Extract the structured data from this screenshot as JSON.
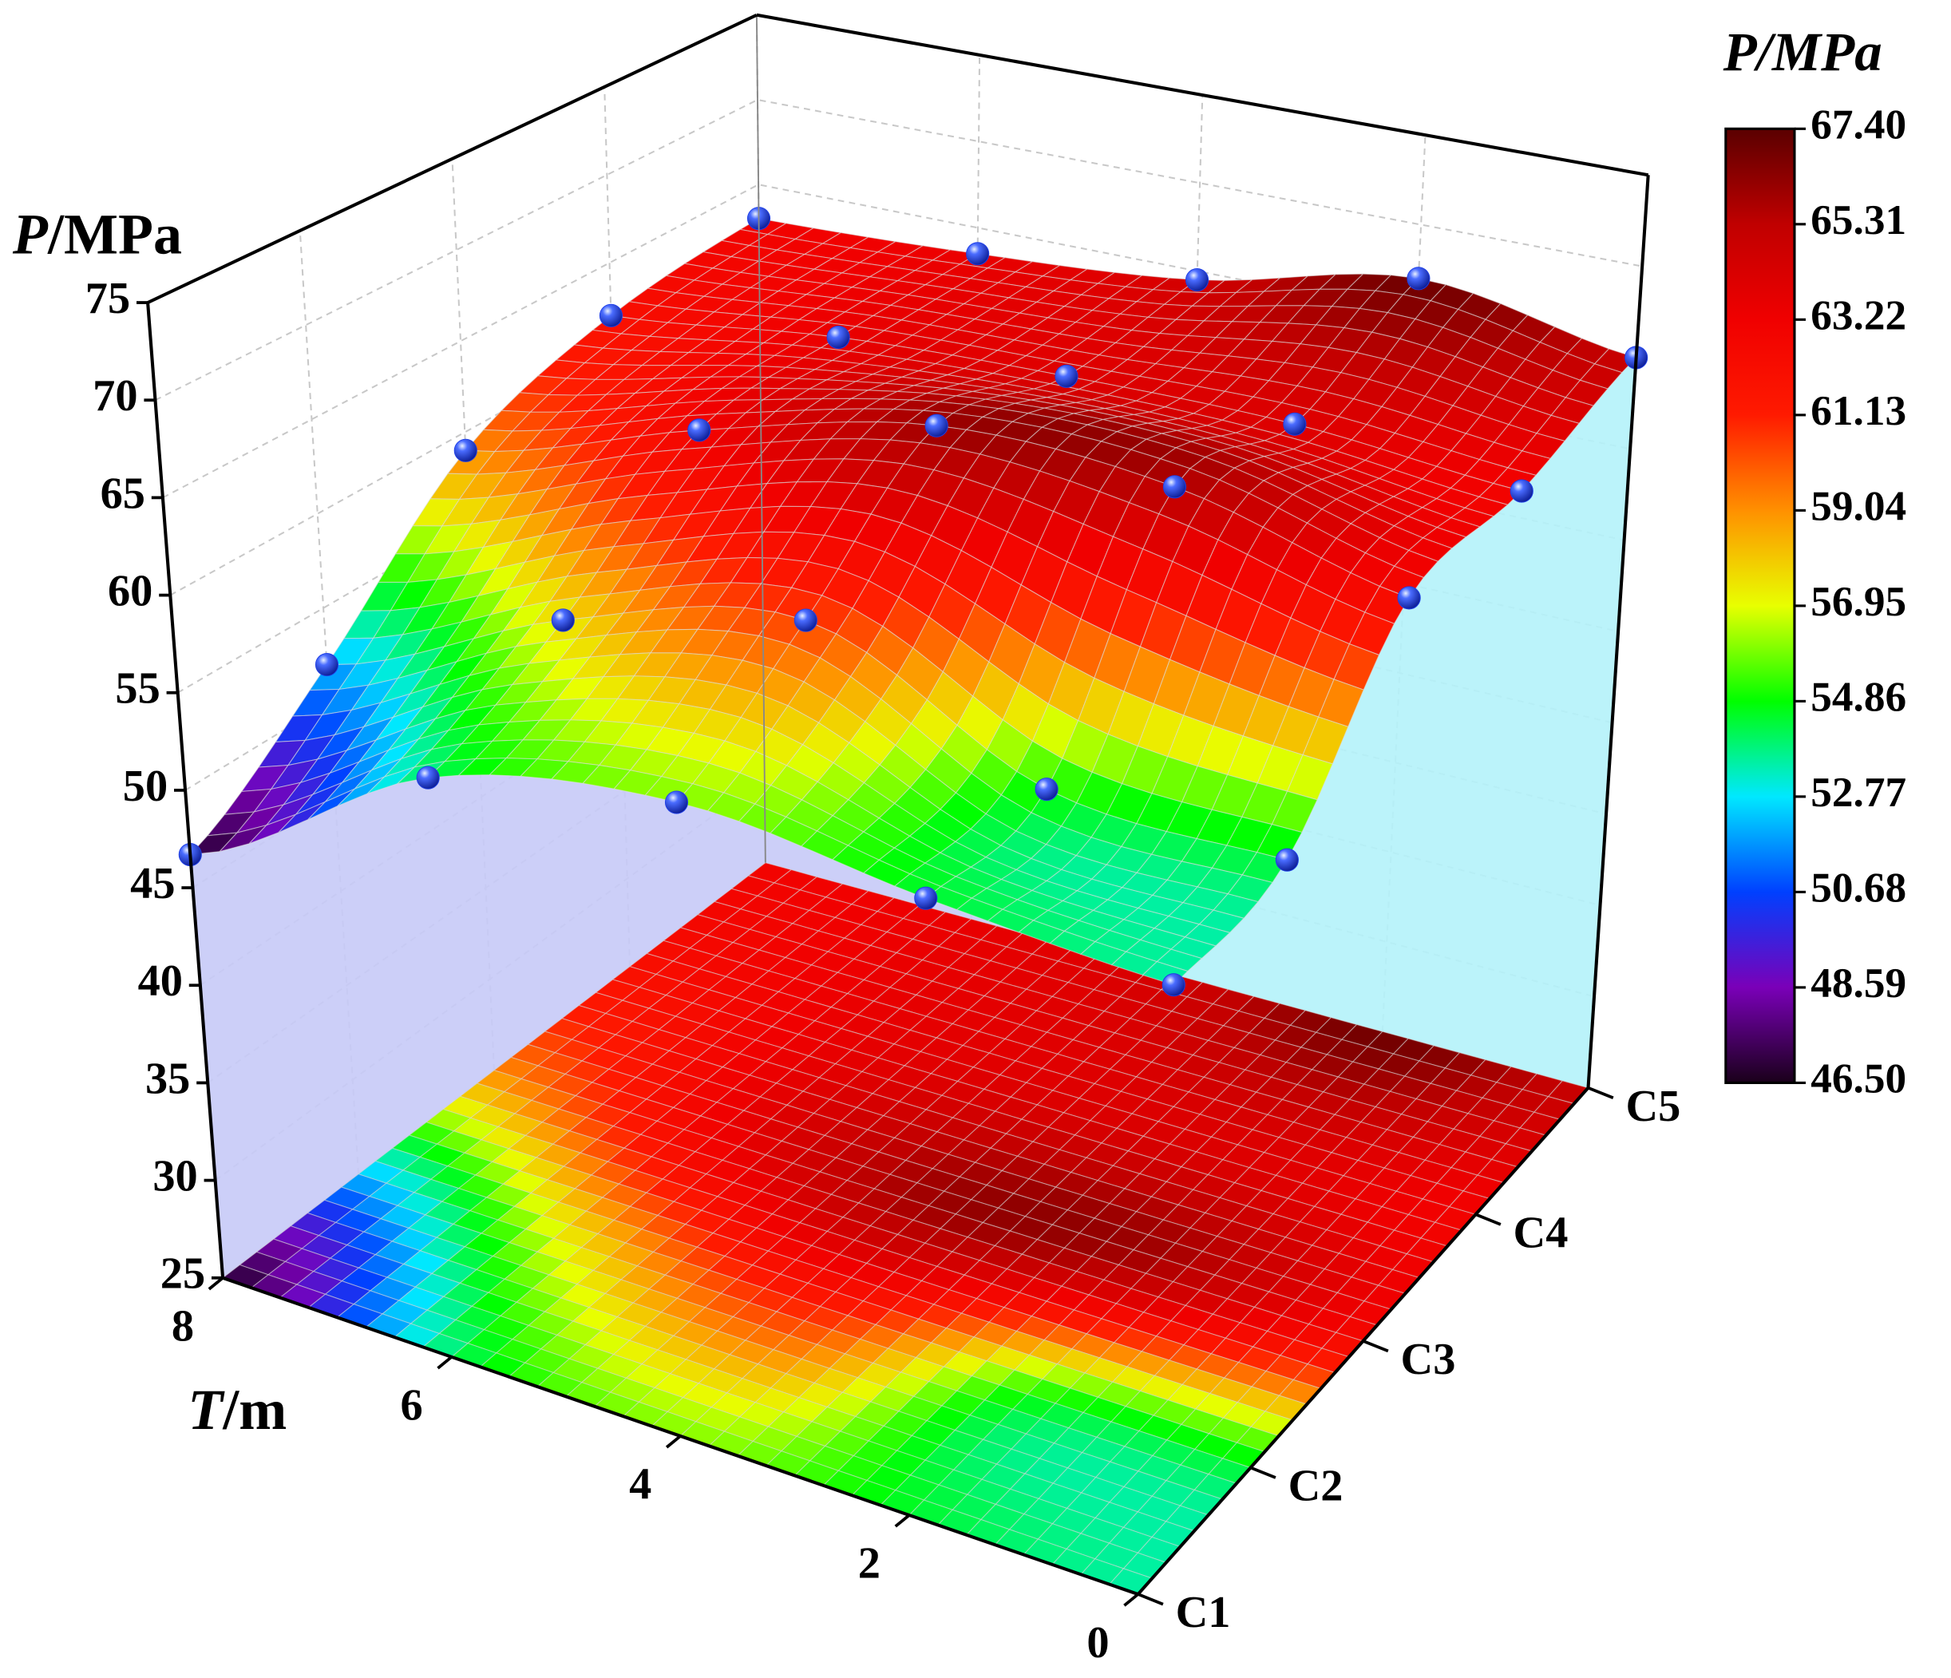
{
  "chart_data": {
    "type": "surface3d",
    "zlabel": "P/MPa",
    "xlabel": "T/m",
    "x": [
      0,
      2,
      4,
      6,
      8
    ],
    "xlim": [
      0,
      8
    ],
    "xticks": [
      0,
      2,
      4,
      6,
      8
    ],
    "categories": [
      "C1",
      "C2",
      "C3",
      "C4",
      "C5"
    ],
    "z": [
      [
        53.5,
        54.5,
        56.0,
        54.0,
        46.7
      ],
      [
        54.5,
        55.0,
        60.5,
        57.5,
        52.0
      ],
      [
        62.5,
        65.5,
        66.0,
        63.0,
        59.0
      ],
      [
        63.0,
        64.0,
        64.0,
        63.5,
        62.0
      ],
      [
        65.0,
        67.0,
        64.5,
        63.5,
        63.0
      ]
    ],
    "zlim": [
      25,
      75
    ],
    "zticks": [
      25,
      30,
      35,
      40,
      45,
      50,
      55,
      60,
      65,
      70,
      75
    ],
    "marker_color": "#2040e8",
    "curtain_colors": [
      "#c6caf7",
      "#b4f2fa"
    ],
    "colorbar": {
      "title": "P/MPa",
      "lim": [
        46.5,
        67.4
      ],
      "ticks": [
        {
          "value": 46.5,
          "label": "46.50"
        },
        {
          "value": 48.59,
          "label": "48.59"
        },
        {
          "value": 50.68,
          "label": "50.68"
        },
        {
          "value": 52.77,
          "label": "52.77"
        },
        {
          "value": 54.86,
          "label": "54.86"
        },
        {
          "value": 56.95,
          "label": "56.95"
        },
        {
          "value": 59.04,
          "label": "59.04"
        },
        {
          "value": 61.13,
          "label": "61.13"
        },
        {
          "value": 63.22,
          "label": "63.22"
        },
        {
          "value": 65.31,
          "label": "65.31"
        },
        {
          "value": 67.4,
          "label": "67.40"
        }
      ],
      "colors": [
        "#1a001a",
        "#7a00b8",
        "#0040ff",
        "#00e8ff",
        "#00ff00",
        "#e8ff00",
        "#ff9000",
        "#ff1a00",
        "#f00000",
        "#c00000",
        "#5a0000"
      ]
    }
  }
}
